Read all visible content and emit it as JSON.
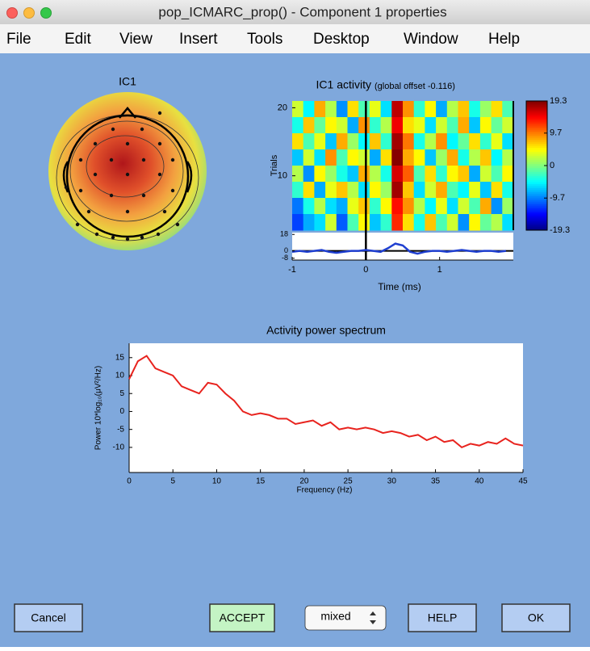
{
  "window": {
    "title": "pop_ICMARC_prop() - Component 1 properties"
  },
  "menu": [
    "File",
    "Edit",
    "View",
    "Insert",
    "Tools",
    "Desktop",
    "Window",
    "Help"
  ],
  "topo": {
    "title": "IC1"
  },
  "chart_data": [
    {
      "type": "erpimage",
      "title": "IC1 activity",
      "subtitle": "(global offset -0.116)",
      "ylabel": "Trials",
      "xlabel": "Time (ms)",
      "xlim": [
        -1,
        2
      ],
      "xticks": [
        -1,
        0,
        1
      ],
      "ylim": [
        2,
        21
      ],
      "yticks": [
        10,
        20
      ],
      "clim": [
        -19.3,
        19.3
      ],
      "colorbar_ticks": [
        19.3,
        9.7,
        0,
        -9.7,
        -19.3
      ],
      "z": [
        [
          3,
          -5,
          8,
          2,
          -9,
          6,
          -2,
          4,
          -6,
          17,
          9,
          -3,
          5,
          -8,
          2,
          7,
          -4,
          1,
          6,
          -2
        ],
        [
          -4,
          7,
          -1,
          5,
          3,
          -8,
          9,
          -3,
          2,
          15,
          6,
          4,
          -6,
          3,
          -2,
          8,
          -7,
          5,
          -1,
          3
        ],
        [
          6,
          -2,
          4,
          -7,
          8,
          1,
          -5,
          7,
          -3,
          18,
          10,
          -4,
          2,
          9,
          -5,
          -1,
          6,
          -3,
          4,
          -6
        ],
        [
          -7,
          3,
          -6,
          9,
          -2,
          5,
          3,
          -8,
          6,
          19,
          8,
          5,
          -7,
          1,
          8,
          -4,
          2,
          7,
          -5,
          2
        ],
        [
          2,
          -9,
          5,
          1,
          -4,
          -7,
          8,
          2,
          -4,
          16,
          11,
          -2,
          6,
          -3,
          5,
          7,
          -8,
          3,
          -2,
          5
        ],
        [
          -3,
          6,
          -8,
          4,
          7,
          2,
          -6,
          5,
          1,
          18,
          7,
          -6,
          3,
          8,
          -2,
          -5,
          4,
          -7,
          6,
          -4
        ],
        [
          -10,
          -4,
          2,
          -6,
          -8,
          4,
          7,
          -3,
          5,
          14,
          9,
          2,
          -5,
          4,
          -6,
          3,
          -2,
          8,
          -9,
          1
        ],
        [
          -12,
          -8,
          -6,
          3,
          -11,
          -2,
          5,
          -7,
          -3,
          13,
          6,
          -4,
          7,
          -2,
          3,
          -9,
          5,
          -1,
          2,
          -6
        ]
      ],
      "erp": {
        "color": "#1f3fd0",
        "ylim": [
          -10,
          20
        ],
        "yticks": [
          -8,
          0,
          18
        ],
        "x": [
          -1,
          -0.9,
          -0.8,
          -0.7,
          -0.6,
          -0.5,
          -0.4,
          -0.3,
          -0.2,
          -0.1,
          0,
          0.1,
          0.2,
          0.3,
          0.4,
          0.5,
          0.6,
          0.7,
          0.8,
          0.9,
          1,
          1.1,
          1.2,
          1.3,
          1.4,
          1.5,
          1.6,
          1.7,
          1.8,
          1.9
        ],
        "values": [
          -1,
          0,
          -1,
          0,
          1,
          -1,
          -2,
          -1,
          0,
          0,
          1,
          0,
          -1,
          3,
          8,
          6,
          -1,
          -3,
          -1,
          0,
          0,
          -1,
          0,
          1,
          0,
          -1,
          0,
          0,
          -1,
          0
        ]
      }
    },
    {
      "type": "line",
      "title": "Activity power spectrum",
      "xlabel": "Frequency (Hz)",
      "ylabel": "Power 10*log₁₀(μV²/Hz)",
      "xlim": [
        0,
        45
      ],
      "xticks": [
        0,
        5,
        10,
        15,
        20,
        25,
        30,
        35,
        40,
        45
      ],
      "ylim": [
        -17,
        19
      ],
      "yticks": [
        15,
        10,
        5,
        0,
        -5,
        -10
      ],
      "series": [
        {
          "color": "#e8231e",
          "x": [
            0,
            1,
            2,
            3,
            4,
            5,
            6,
            7,
            8,
            9,
            10,
            11,
            12,
            13,
            14,
            15,
            16,
            17,
            18,
            19,
            20,
            21,
            22,
            23,
            24,
            25,
            26,
            27,
            28,
            29,
            30,
            31,
            32,
            33,
            34,
            35,
            36,
            37,
            38,
            39,
            40,
            41,
            42,
            43,
            44,
            45
          ],
          "values": [
            9,
            14,
            15.5,
            12,
            11,
            10,
            7,
            6,
            5,
            8,
            7.5,
            5,
            3,
            0,
            -1,
            -0.5,
            -1,
            -2,
            -2,
            -3.5,
            -3,
            -2.5,
            -4,
            -3,
            -5,
            -4.5,
            -5,
            -4.5,
            -5,
            -6,
            -5.5,
            -6,
            -7,
            -6.5,
            -8,
            -7,
            -8.5,
            -8,
            -10,
            -9,
            -9.5,
            -8.5,
            -9,
            -7.5,
            -9,
            -9.5
          ]
        }
      ]
    }
  ],
  "buttons": [
    "Cancel",
    "ACCEPT",
    "mixed",
    "HELP",
    "OK"
  ]
}
